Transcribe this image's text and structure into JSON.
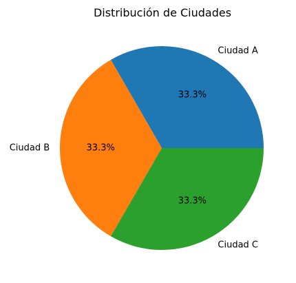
{
  "chart_data": {
    "type": "pie",
    "title": "Distribución de Ciudades",
    "categories": [
      "Ciudad A",
      "Ciudad B",
      "Ciudad C"
    ],
    "values": [
      1,
      1,
      1
    ],
    "percent_labels": [
      "33.3%",
      "33.3%",
      "33.3%"
    ],
    "colors": [
      "#1f77b4",
      "#ff7f0e",
      "#2ca02c"
    ],
    "start_angle_deg": 0,
    "direction": "counterclockwise"
  }
}
